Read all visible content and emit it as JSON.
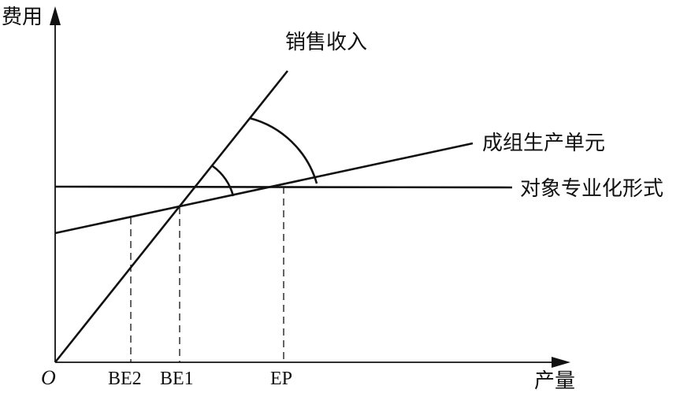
{
  "axes": {
    "y_label": "费用",
    "x_label": "产量",
    "origin": "O"
  },
  "lines": {
    "sales_revenue": "销售收入",
    "group_production_unit": "成组生产单元",
    "object_specialization": "对象专业化形式"
  },
  "ticks": {
    "be2": "BE2",
    "be1": "BE1",
    "ep": "EP"
  }
}
